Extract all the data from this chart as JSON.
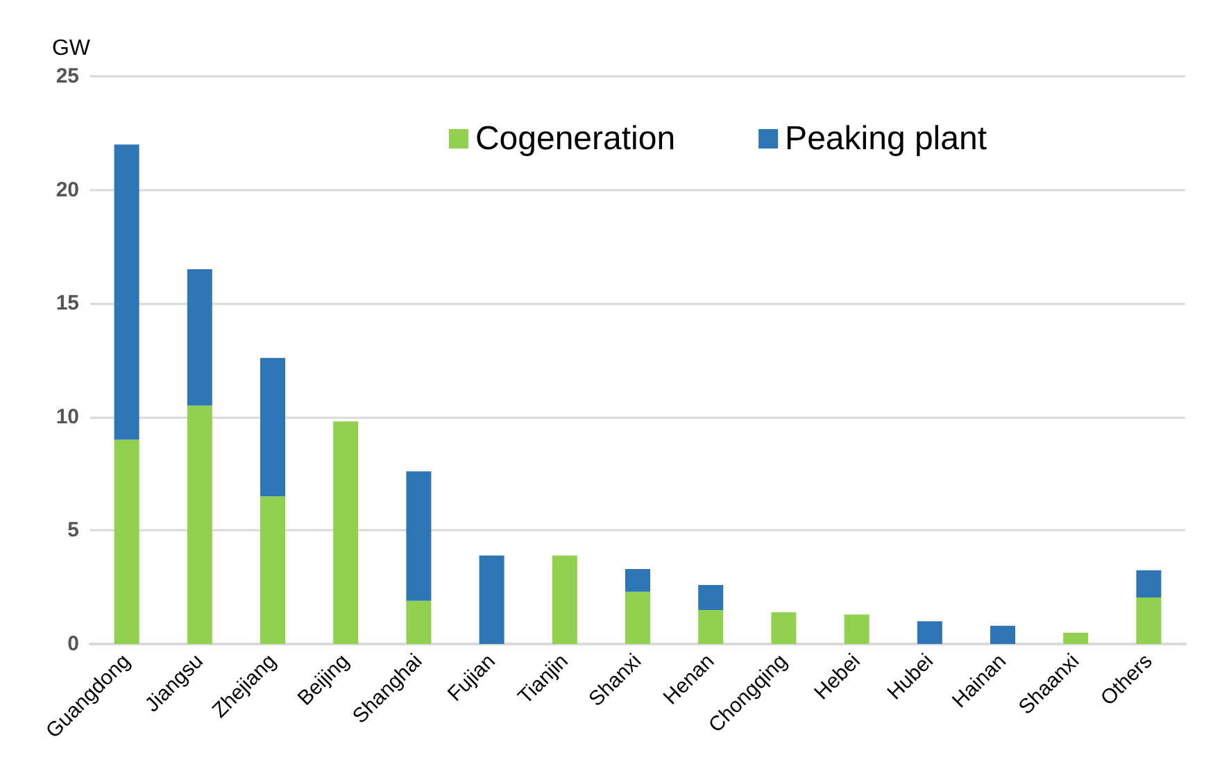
{
  "chart_data": {
    "type": "bar",
    "stacked": true,
    "ylabel": "GW",
    "categories": [
      "Guangdong",
      "Jiangsu",
      "Zhejiang",
      "Beijing",
      "Shanghai",
      "Fujian",
      "Tianjin",
      "Shanxi",
      "Henan",
      "Chongqing",
      "Hebei",
      "Hubei",
      "Hainan",
      "Shaanxi",
      "Others"
    ],
    "series": [
      {
        "name": "Cogeneration",
        "color": "#92d050",
        "values": [
          9.0,
          10.5,
          6.5,
          9.8,
          1.9,
          0,
          3.9,
          2.3,
          1.5,
          1.4,
          1.3,
          0,
          0,
          0.5,
          2.05
        ]
      },
      {
        "name": "Peaking plant",
        "color": "#2e75b6",
        "values": [
          13.0,
          6.0,
          6.1,
          0,
          5.7,
          3.9,
          0,
          1.0,
          1.1,
          0,
          0,
          1.0,
          0.8,
          0,
          1.2
        ]
      }
    ],
    "ylim": [
      0,
      25
    ],
    "yticks": [
      0,
      5,
      10,
      15,
      20,
      25
    ],
    "grid": "y",
    "legend": "top right"
  }
}
